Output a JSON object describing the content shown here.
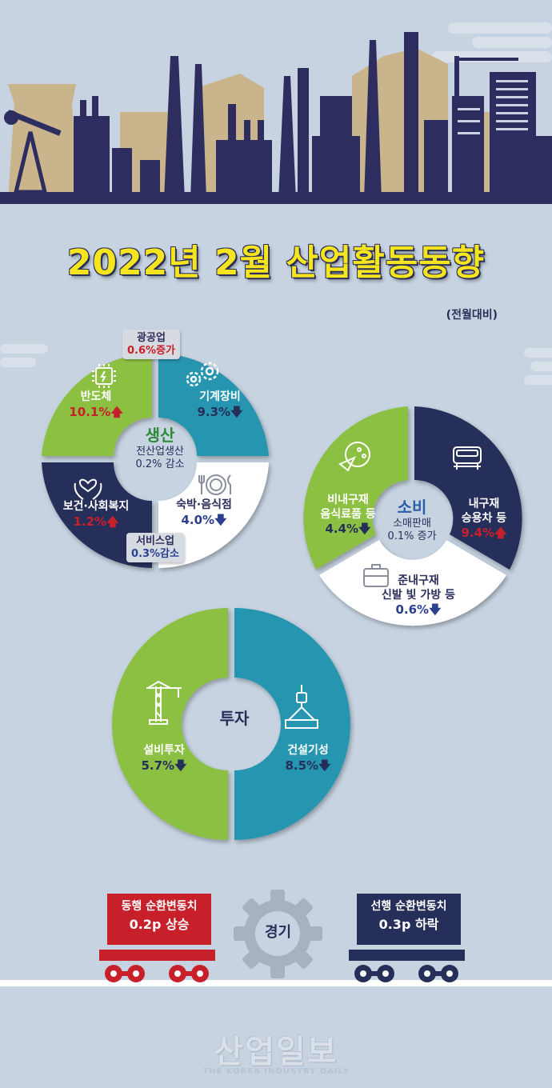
{
  "title": "2022년 2월 산업활동동향",
  "subtitle": "(전월대비)",
  "production": {
    "center_title": "생산",
    "center_text": "전산업생산",
    "center_value": "0.2% 감소",
    "mining_tag": {
      "label": "광공업",
      "value": "0.6%증가"
    },
    "service_tag": {
      "label": "서비스업",
      "value": "0.3%감소"
    },
    "items": [
      {
        "label": "반도체",
        "value": "10.1%",
        "dir": "up"
      },
      {
        "label": "기계장비",
        "value": "9.3%",
        "dir": "down"
      },
      {
        "label": "보건·사회복지",
        "value": "1.2%",
        "dir": "up"
      },
      {
        "label": "숙박·음식점",
        "value": "4.0%",
        "dir": "down"
      }
    ]
  },
  "consumption": {
    "center_title": "소비",
    "center_text": "소매판매",
    "center_value": "0.1% 증가",
    "items": [
      {
        "label": "비내구재",
        "label2": "음식료품 등",
        "value": "4.4%",
        "dir": "down"
      },
      {
        "label": "내구재",
        "label2": "승용차 등",
        "value": "9.4%",
        "dir": "up"
      },
      {
        "label": "준내구재",
        "label2": "신발 빛 가방 등",
        "value": "0.6%",
        "dir": "down"
      }
    ]
  },
  "investment": {
    "center_title": "투자",
    "items": [
      {
        "label": "설비투자",
        "value": "5.7%",
        "dir": "down"
      },
      {
        "label": "건설기성",
        "value": "8.5%",
        "dir": "down"
      }
    ]
  },
  "economy": {
    "center": "경기",
    "coincident": {
      "line1": "동행 순환변동치",
      "line2": "0.2p 상승"
    },
    "leading": {
      "line1": "선행 순환변동치",
      "line2": "0.3p 하락"
    }
  },
  "logo": {
    "ko": "산업일보",
    "en": "THE KOREA INDUSTRY DAILY"
  },
  "colors": {
    "green": "#8cc043",
    "teal": "#2596b0",
    "navy": "#262e5a",
    "white": "#ffffff",
    "red": "#c8202a",
    "yellow": "#f6e51e",
    "background": "#c7d3e1"
  }
}
